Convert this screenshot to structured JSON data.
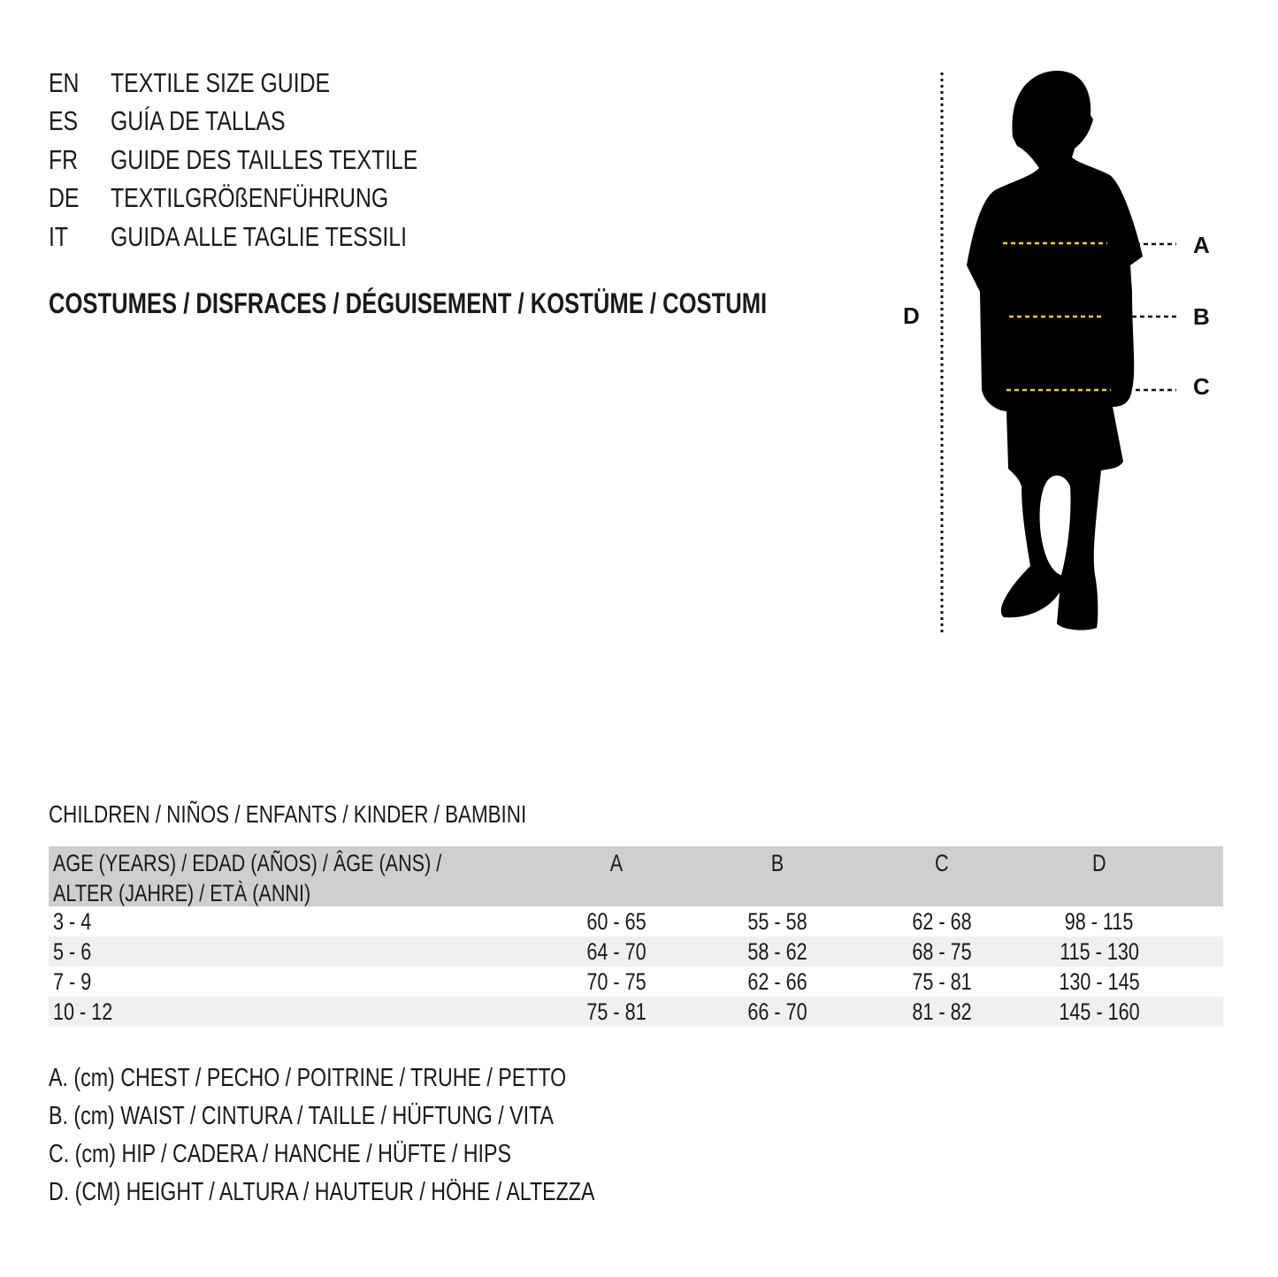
{
  "languages": [
    {
      "code": "EN",
      "title": "TEXTILE SIZE GUIDE"
    },
    {
      "code": "ES",
      "title": "GUÍA DE TALLAS"
    },
    {
      "code": "FR",
      "title": "GUIDE DES TAILLES TEXTILE"
    },
    {
      "code": "DE",
      "title": "TEXTILGRÖßENFÜHRUNG"
    },
    {
      "code": "IT",
      "title": "GUIDA ALLE TAGLIE TESSILI"
    }
  ],
  "category": "COSTUMES / DISFRACES / DÉGUISEMENT / KOSTÜME / COSTUMI",
  "figure": {
    "labels": {
      "a": "A",
      "b": "B",
      "c": "C",
      "d": "D"
    },
    "measure_line_color": "#f2d21b"
  },
  "table": {
    "title": "CHILDREN / NIÑOS / ENFANTS / KINDER / BAMBINI",
    "age_header_line1": "AGE (YEARS) / EDAD (AÑOS) / ÂGE (ANS) /",
    "age_header_line2": "ALTER (JAHRE) / ETÀ (ANNI)",
    "columns": [
      "A",
      "B",
      "C",
      "D"
    ],
    "rows": [
      {
        "age": "3 - 4",
        "values": [
          "60 - 65",
          "55 - 58",
          "62 - 68",
          "98 - 115"
        ]
      },
      {
        "age": "5 - 6",
        "values": [
          "64 - 70",
          "58 - 62",
          "68 - 75",
          "115 - 130"
        ]
      },
      {
        "age": "7 - 9",
        "values": [
          "70 - 75",
          "62 - 66",
          "75 - 81",
          "130 - 145"
        ]
      },
      {
        "age": "10 - 12",
        "values": [
          "75 - 81",
          "66 - 70",
          "81 - 82",
          "145 - 160"
        ]
      }
    ],
    "header_bg": "#cfcfcf",
    "alt_row_bg": "#f0f0f0"
  },
  "legend": [
    "A. (cm) CHEST / PECHO / POITRINE / TRUHE / PETTO",
    "B. (cm) WAIST / CINTURA / TAILLE / HÜFTUNG / VITA",
    "C. (cm) HIP / CADERA / HANCHE / HÜFTE / HIPS",
    "D. (CM) HEIGHT / ALTURA / HAUTEUR / HÖHE / ALTEZZA"
  ]
}
